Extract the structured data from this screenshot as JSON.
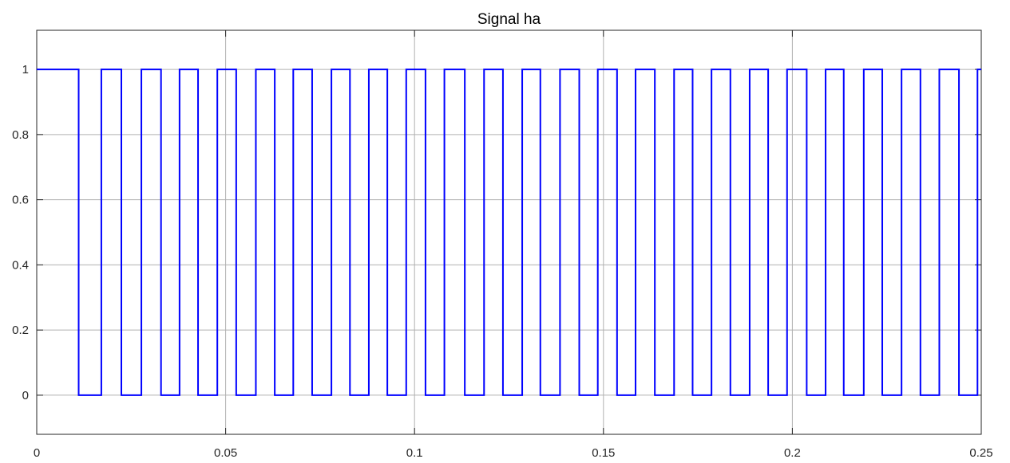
{
  "chart_data": {
    "type": "line",
    "title": "Signal ha",
    "xlabel": "",
    "ylabel": "",
    "xlim": [
      0,
      0.25
    ],
    "ylim": [
      -0.12,
      1.12
    ],
    "xticks": [
      0,
      0.05,
      0.1,
      0.15,
      0.2,
      0.25
    ],
    "xtick_labels": [
      "0",
      "0.05",
      "0.1",
      "0.15",
      "0.2",
      "0.25"
    ],
    "yticks": [
      0,
      0.2,
      0.4,
      0.6,
      0.8,
      1
    ],
    "ytick_labels": [
      "0",
      "0.2",
      "0.4",
      "0.6",
      "0.8",
      "1"
    ],
    "grid": true,
    "series": [
      {
        "color": "#0000ff",
        "step": true,
        "high_intervals": [
          [
            0,
            0.0111
          ],
          [
            0.0171,
            0.0224
          ],
          [
            0.0277,
            0.0329
          ],
          [
            0.0378,
            0.0427
          ],
          [
            0.0478,
            0.0528
          ],
          [
            0.058,
            0.063
          ],
          [
            0.0679,
            0.0729
          ],
          [
            0.078,
            0.0829
          ],
          [
            0.0879,
            0.0928
          ],
          [
            0.0978,
            0.1029
          ],
          [
            0.1079,
            0.1133
          ],
          [
            0.1184,
            0.1234
          ],
          [
            0.1285,
            0.1333
          ],
          [
            0.1385,
            0.1436
          ],
          [
            0.1485,
            0.1536
          ],
          [
            0.1585,
            0.1636
          ],
          [
            0.1687,
            0.1736
          ],
          [
            0.1786,
            0.1836
          ],
          [
            0.1887,
            0.1936
          ],
          [
            0.1986,
            0.2038
          ],
          [
            0.2088,
            0.2136
          ],
          [
            0.2189,
            0.2238
          ],
          [
            0.2289,
            0.2339
          ],
          [
            0.2389,
            0.2441
          ],
          [
            0.249,
            0.25
          ]
        ]
      }
    ]
  }
}
